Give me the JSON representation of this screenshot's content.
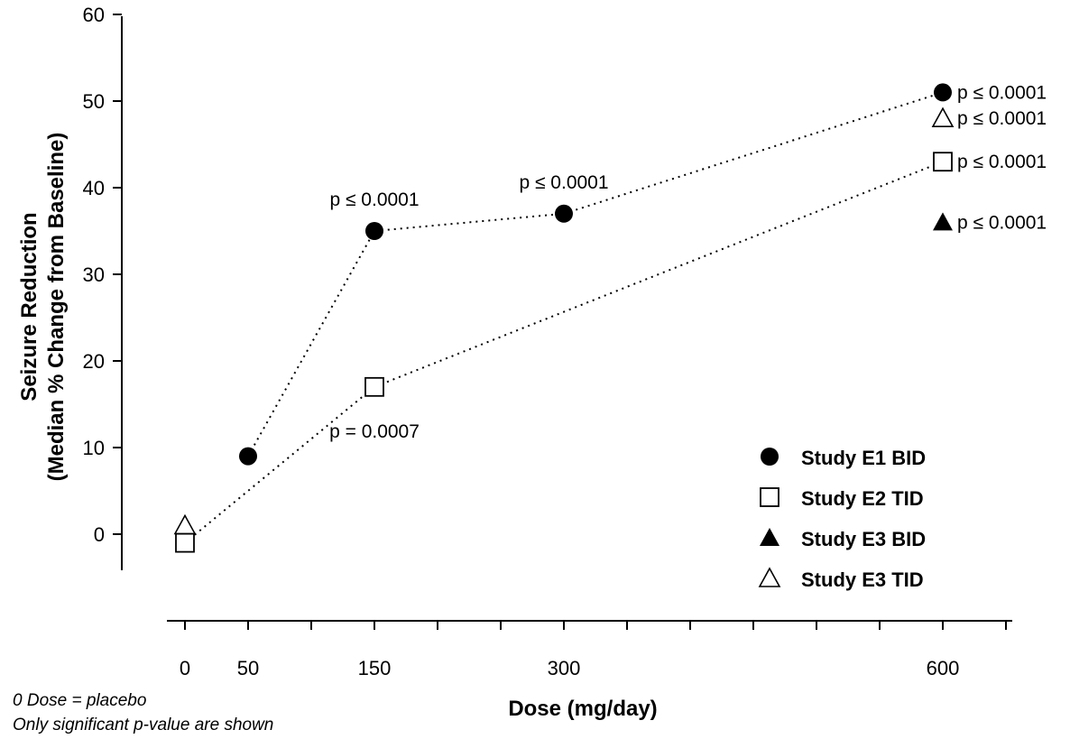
{
  "chart_data": {
    "type": "scatter",
    "xlabel": "Dose (mg/day)",
    "ylabel_line1": "Seizure Reduction",
    "ylabel_line2": "(Median % Change from Baseline)",
    "x_ticks": [
      0,
      50,
      150,
      300,
      600
    ],
    "y_ticks": [
      0,
      10,
      20,
      30,
      40,
      50,
      60
    ],
    "xlim": [
      0,
      650
    ],
    "ylim": [
      -4,
      60
    ],
    "grid": false,
    "legend_position": "bottom-right",
    "series": [
      {
        "name": "Study E1 BID",
        "marker": "filled-circle",
        "line": "dotted",
        "x": [
          50,
          150,
          300,
          600
        ],
        "y": [
          9,
          35,
          37,
          51
        ]
      },
      {
        "name": "Study E2 TID",
        "marker": "open-square",
        "line": "dotted",
        "x": [
          0,
          150,
          600
        ],
        "y": [
          -1,
          17,
          43
        ]
      },
      {
        "name": "Study E3 BID",
        "marker": "filled-triangle",
        "line": "none",
        "x": [
          600
        ],
        "y": [
          36
        ]
      },
      {
        "name": "Study E3 TID",
        "marker": "open-triangle",
        "line": "none",
        "x": [
          0,
          600
        ],
        "y": [
          1,
          48
        ]
      }
    ],
    "annotations": [
      {
        "text": "p ≤ 0.0001",
        "x": 150,
        "y": 35,
        "pos": "above"
      },
      {
        "text": "p ≤ 0.0001",
        "x": 300,
        "y": 37,
        "pos": "above"
      },
      {
        "text": "p = 0.0007",
        "x": 150,
        "y": 17,
        "pos": "below"
      },
      {
        "text": "p ≤ 0.0001",
        "x": 600,
        "y": 51,
        "pos": "right"
      },
      {
        "text": "p ≤ 0.0001",
        "x": 600,
        "y": 48,
        "pos": "right"
      },
      {
        "text": "p ≤ 0.0001",
        "x": 600,
        "y": 43,
        "pos": "right"
      },
      {
        "text": "p ≤ 0.0001",
        "x": 600,
        "y": 36,
        "pos": "right"
      }
    ],
    "footnotes": [
      "0 Dose = placebo",
      "Only significant p-value are shown"
    ]
  }
}
